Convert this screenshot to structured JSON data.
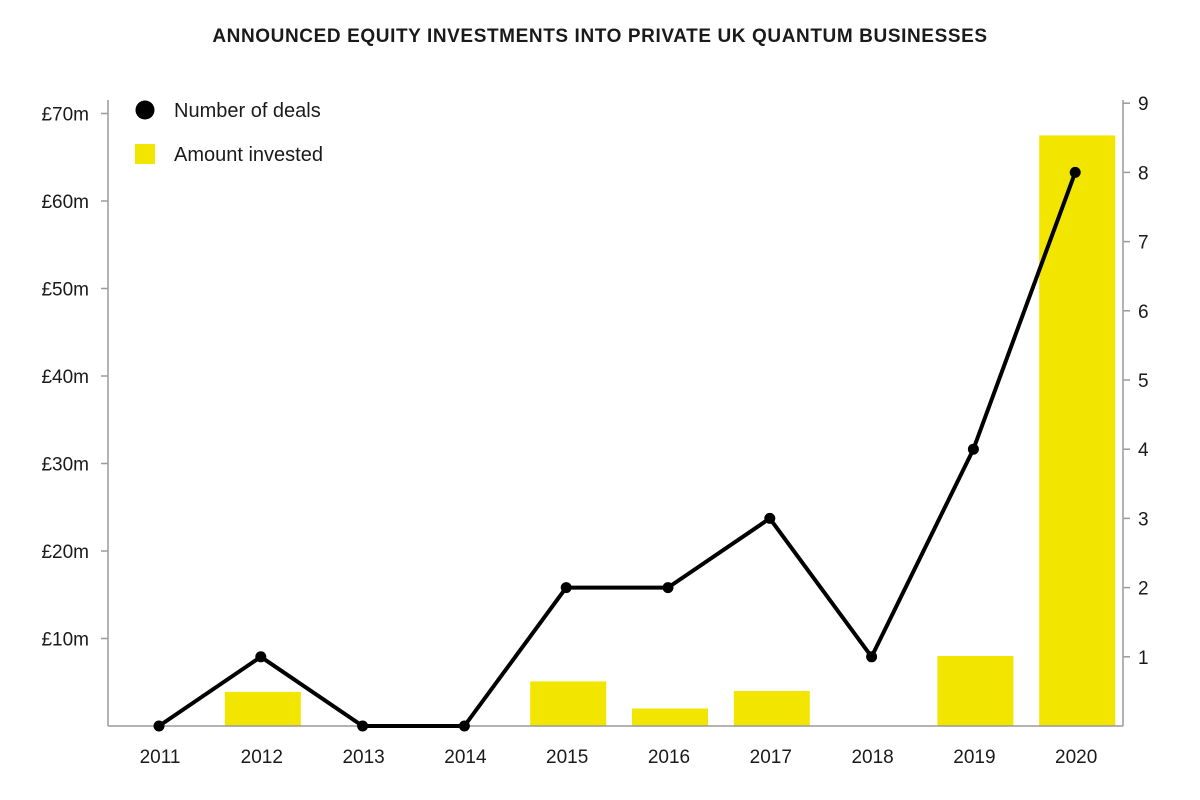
{
  "chart_data": {
    "type": "bar",
    "title": "ANNOUNCED EQUITY INVESTMENTS INTO PRIVATE UK QUANTUM BUSINESSES",
    "categories": [
      "2011",
      "2012",
      "2013",
      "2014",
      "2015",
      "2016",
      "2017",
      "2018",
      "2019",
      "2020"
    ],
    "series": [
      {
        "name": "Amount invested",
        "kind": "bar",
        "axis": "left",
        "color": "#f2e600",
        "unit": "£m",
        "values": [
          0,
          3.9,
          0,
          0,
          5.1,
          2.0,
          4.0,
          0,
          8.0,
          67.5
        ]
      },
      {
        "name": "Number of deals",
        "kind": "line",
        "axis": "right",
        "color": "#000000",
        "values": [
          0,
          1,
          0,
          0,
          2,
          2,
          3,
          1,
          4,
          8
        ]
      }
    ],
    "left_axis": {
      "ticks": [
        10,
        20,
        30,
        40,
        50,
        60,
        70
      ],
      "tick_labels": [
        "£10m",
        "£20m",
        "£30m",
        "£40m",
        "£50m",
        "£60m",
        "£70m"
      ]
    },
    "right_axis": {
      "ticks": [
        1,
        2,
        3,
        4,
        5,
        6,
        7,
        8,
        9
      ],
      "tick_labels": [
        "1",
        "2",
        "3",
        "4",
        "5",
        "6",
        "7",
        "8",
        "9"
      ]
    },
    "grid": false,
    "legend_position": "top-left"
  }
}
